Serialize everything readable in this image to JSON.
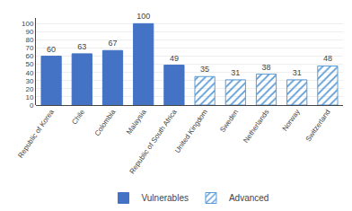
{
  "chart_data": {
    "type": "bar",
    "categories": [
      "Republic of Korea",
      "Chile",
      "Colombia",
      "Malaysia",
      "Republic of South Africa",
      "United Kingdom",
      "Sweden",
      "Netherlands",
      "Norway",
      "Switzerland"
    ],
    "series": [
      {
        "name": "Vulnerables",
        "color": "#4472C4",
        "values": [
          60,
          63,
          67,
          100,
          49,
          null,
          null,
          null,
          null,
          null
        ]
      },
      {
        "name": "Advanced",
        "color": "#5B9BD5",
        "values": [
          null,
          null,
          null,
          null,
          null,
          35,
          31,
          38,
          31,
          48
        ]
      }
    ],
    "ylim": [
      0,
      107
    ],
    "yticks": [
      0,
      10,
      20,
      30,
      40,
      50,
      60,
      70,
      80,
      90,
      100
    ],
    "grid": true,
    "legend": "bottom",
    "data_labels": true
  }
}
